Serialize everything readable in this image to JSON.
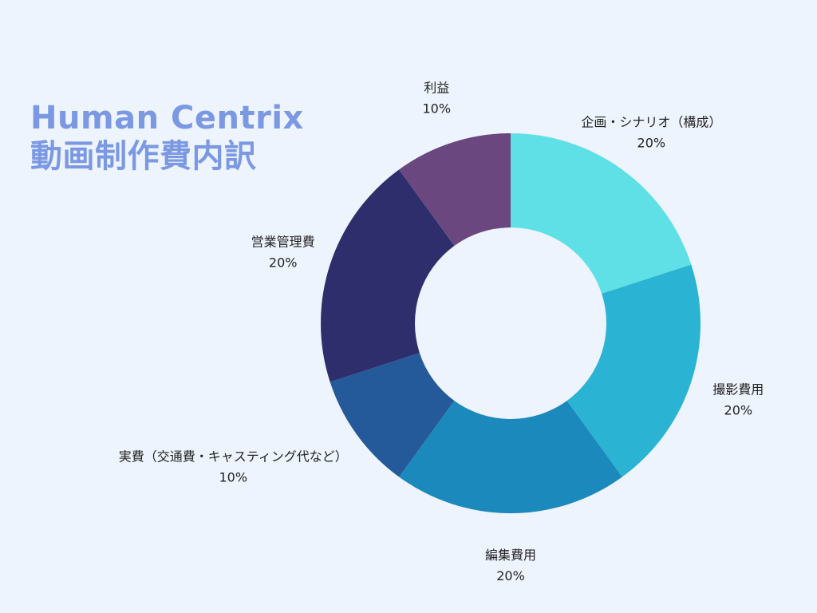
{
  "chart_data": {
    "type": "pie",
    "title_lines": [
      "Human Centrix",
      "動画制作費内訳"
    ],
    "donut": true,
    "slices": [
      {
        "label": "企画・シナリオ（構成）",
        "value": 20,
        "value_label": "20%",
        "color": "#5ee0e6"
      },
      {
        "label": "撮影費用",
        "value": 20,
        "value_label": "20%",
        "color": "#2bb3d3"
      },
      {
        "label": "編集費用",
        "value": 20,
        "value_label": "20%",
        "color": "#1b89bb"
      },
      {
        "label": "実費（交通費・キャスティング代など）",
        "value": 10,
        "value_label": "10%",
        "color": "#245a99"
      },
      {
        "label": "営業管理費",
        "value": 20,
        "value_label": "20%",
        "color": "#2d2e6b"
      },
      {
        "label": "利益",
        "value": 10,
        "value_label": "10%",
        "color": "#6a487f"
      }
    ]
  },
  "colors": {
    "background": "#eef4fd",
    "title": "#7b98e3"
  }
}
